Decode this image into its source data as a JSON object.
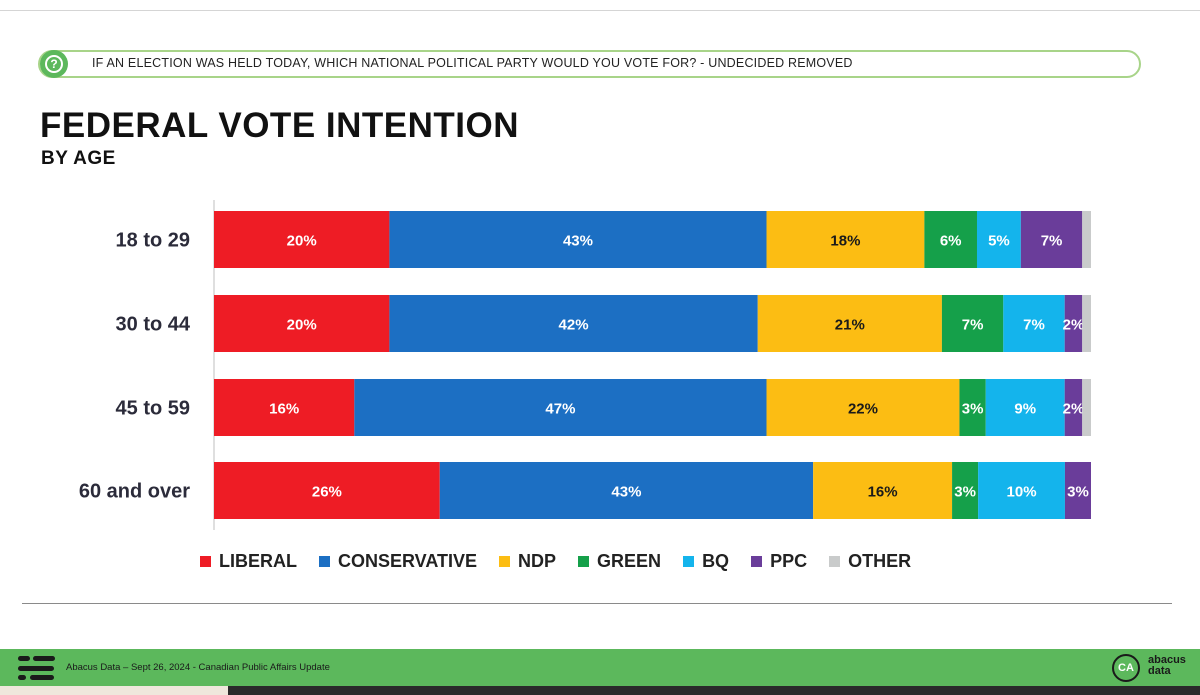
{
  "question": {
    "icon": "question-icon",
    "text": "IF AN ELECTION WAS HELD TODAY, WHICH NATIONAL POLITICAL PARTY WOULD YOU VOTE FOR? - UNDECIDED REMOVED"
  },
  "chart_data": {
    "type": "bar",
    "orientation": "horizontal",
    "stacked": true,
    "title": "FEDERAL VOTE INTENTION",
    "subtitle": "BY AGE",
    "categories": [
      "18 to 29",
      "30 to 44",
      "45 to 59",
      "60 and over"
    ],
    "series": [
      {
        "name": "LIBERAL",
        "color": "#ee1c25",
        "values": [
          20,
          20,
          16,
          26
        ]
      },
      {
        "name": "CONSERVATIVE",
        "color": "#1c6fc3",
        "values": [
          43,
          42,
          47,
          43
        ]
      },
      {
        "name": "NDP",
        "color": "#fcbd13",
        "values": [
          18,
          21,
          22,
          16
        ]
      },
      {
        "name": "GREEN",
        "color": "#15a04a",
        "values": [
          6,
          7,
          3,
          3
        ]
      },
      {
        "name": "BQ",
        "color": "#14b4ec",
        "values": [
          5,
          7,
          9,
          10
        ]
      },
      {
        "name": "PPC",
        "color": "#6a3d9a",
        "values": [
          7,
          2,
          2,
          3
        ]
      },
      {
        "name": "OTHER",
        "color": "#c9cbcb",
        "values": [
          1,
          1,
          1,
          0
        ]
      }
    ],
    "data_labels": [
      [
        "20%",
        "43%",
        "18%",
        "6%",
        "5%",
        "7%",
        ""
      ],
      [
        "20%",
        "42%",
        "21%",
        "7%",
        "7%",
        "2%",
        ""
      ],
      [
        "16%",
        "47%",
        "22%",
        "3%",
        "9%",
        "2%",
        ""
      ],
      [
        "26%",
        "43%",
        "16%",
        "3%",
        "10%",
        "3%",
        ""
      ]
    ],
    "xlim": [
      0,
      100
    ],
    "grid": false,
    "legend_position": "bottom"
  },
  "footer": {
    "source": "Abacus Data – Sept 26, 2024 - Canadian Public Affairs Update",
    "badge": "CA",
    "brand_line1": "abacus",
    "brand_line2": "data"
  }
}
